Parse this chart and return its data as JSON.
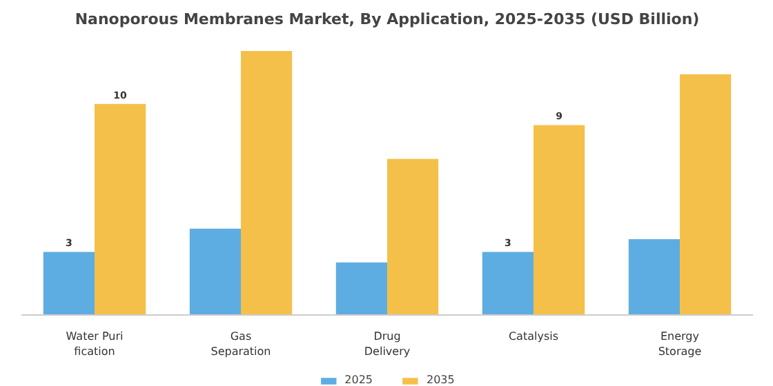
{
  "chart_data": {
    "type": "bar",
    "title": "Nanoporous Membranes Market, By Application, 2025-2035 (USD Billion)",
    "categories": [
      "Water Puri\nfication",
      "Gas\nSeparation",
      "Drug\nDelivery",
      "Catalysis",
      "Energy\nStorage"
    ],
    "series": [
      {
        "name": "2025",
        "color": "#5dade2",
        "values": [
          3,
          4.1,
          2.5,
          3,
          3.6
        ],
        "value_labels": [
          "3",
          null,
          null,
          "3",
          null
        ]
      },
      {
        "name": "2035",
        "color": "#f5c04a",
        "values": [
          10,
          12.5,
          7.4,
          9,
          11.4
        ],
        "value_labels": [
          "10",
          null,
          null,
          "9",
          null
        ]
      }
    ],
    "legend": "bottom"
  }
}
